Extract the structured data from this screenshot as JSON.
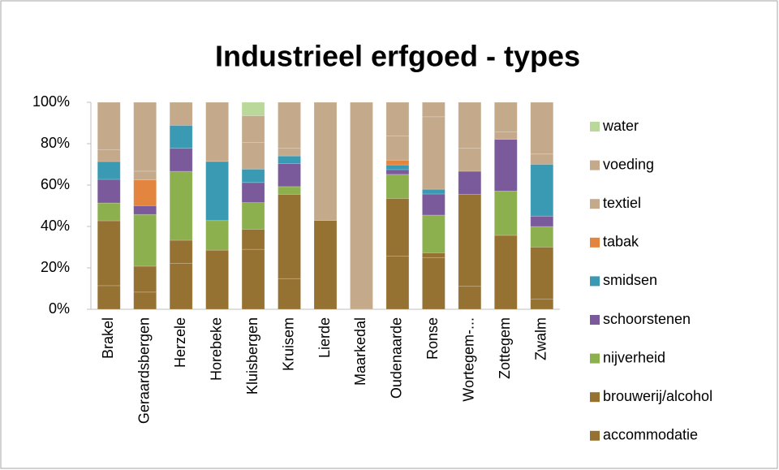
{
  "chart_data": {
    "type": "stacked_bar_100",
    "title": "Industrieel erfgoed - types",
    "categories": [
      "Brakel",
      "Geraardsbergen",
      "Herzele",
      "Horebeke",
      "Kluisbergen",
      "Kruisem",
      "Lierde",
      "Maarkedal",
      "Oudenaarde",
      "Ronse",
      "Wortegem-...",
      "Zottegem",
      "Zwalm"
    ],
    "series": [
      {
        "name": "accommodatie",
        "color": "#957132",
        "values": [
          11.4,
          8.3,
          22.2,
          0,
          29,
          14.8,
          0,
          0,
          25.6,
          25,
          11.1,
          0,
          5
        ]
      },
      {
        "name": "brouwerij/alcohol",
        "color": "#957132",
        "values": [
          31.3,
          12.5,
          11.1,
          28.6,
          9.7,
          40.7,
          42.9,
          0,
          27.9,
          2.3,
          44.4,
          35.7,
          25
        ]
      },
      {
        "name": "nijverheid",
        "color": "#8cb04e",
        "values": [
          8.6,
          25,
          33.3,
          14.3,
          12.9,
          3.7,
          0,
          0,
          11.6,
          18.2,
          0,
          21.4,
          10
        ]
      },
      {
        "name": "schoorstenen",
        "color": "#7a5a9a",
        "values": [
          11.4,
          4.2,
          11.1,
          0,
          9.7,
          11.1,
          0,
          0,
          2.3,
          10.2,
          11.1,
          25,
          5
        ]
      },
      {
        "name": "smidsen",
        "color": "#3a9ab3",
        "values": [
          8.6,
          0,
          11.1,
          28.6,
          6.5,
          3.7,
          0,
          0,
          2.3,
          2.3,
          0,
          0,
          25
        ]
      },
      {
        "name": "tabak",
        "color": "#e3843f",
        "values": [
          0,
          12.5,
          0,
          0,
          0,
          0,
          0,
          0,
          2.3,
          0,
          0,
          0,
          0
        ]
      },
      {
        "name": "textiel",
        "color": "#c4a98a",
        "values": [
          5.7,
          4.2,
          11.1,
          28.6,
          12.9,
          3.7,
          57.1,
          100,
          11.6,
          35,
          11.1,
          3.6,
          5
        ]
      },
      {
        "name": "voeding",
        "color": "#c4a98a",
        "values": [
          22.9,
          33.3,
          0,
          0,
          12.9,
          22.2,
          0,
          0,
          16.3,
          7,
          22.2,
          14.3,
          25
        ]
      },
      {
        "name": "water",
        "color": "#b9d89a",
        "values": [
          0,
          0,
          0,
          0,
          6.5,
          0,
          0,
          0,
          0,
          0,
          0,
          0,
          0
        ]
      }
    ],
    "ylim": [
      0,
      100
    ],
    "yticks": [
      {
        "value": 0,
        "label": "0%"
      },
      {
        "value": 20,
        "label": "20%"
      },
      {
        "value": 40,
        "label": "40%"
      },
      {
        "value": 60,
        "label": "60%"
      },
      {
        "value": 80,
        "label": "80%"
      },
      {
        "value": 100,
        "label": "100%"
      }
    ],
    "grid": false,
    "legend": "right"
  }
}
